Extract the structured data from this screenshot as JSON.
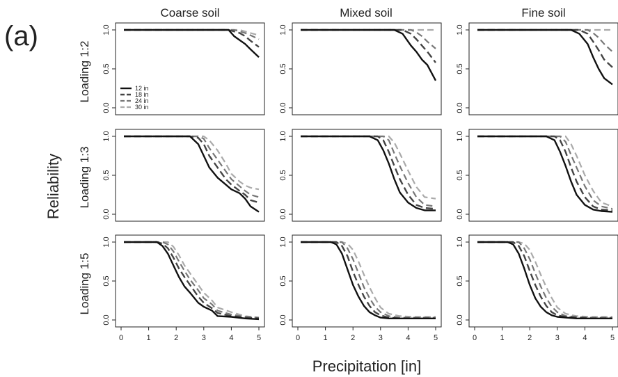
{
  "figure": {
    "panel_tag": "(a)",
    "ylabel": "Reliability",
    "xlabel": "Precipitation [in]",
    "columns": [
      "Coarse soil",
      "Mixed soil",
      "Fine soil"
    ],
    "rows": [
      "Loading 1:2",
      "Loading 1:3",
      "Loading 1:5"
    ],
    "legend": [
      "12 in",
      "18 in",
      "24 in",
      "30 in"
    ],
    "series_colors": [
      "#111111",
      "#444444",
      "#777777",
      "#aaaaaa"
    ],
    "x_ticks": [
      "0",
      "1",
      "2",
      "3",
      "4",
      "5"
    ],
    "y_ticks": [
      "0.0",
      "0.5",
      "1.0"
    ]
  },
  "chart_data": [
    {
      "type": "line",
      "title": "Coarse soil",
      "ylabel": "Loading 1:2",
      "xlim": [
        0,
        5
      ],
      "ylim": [
        0,
        1
      ],
      "x": [
        0.1,
        3.9,
        4.1,
        4.3,
        4.5,
        4.7,
        5.0
      ],
      "series": [
        {
          "name": "12 in",
          "values": [
            1.0,
            1.0,
            0.92,
            0.87,
            0.82,
            0.75,
            0.65
          ]
        },
        {
          "name": "18 in",
          "values": [
            1.0,
            1.0,
            0.98,
            0.96,
            0.92,
            0.86,
            0.78
          ]
        },
        {
          "name": "24 in",
          "values": [
            1.0,
            1.0,
            1.0,
            0.98,
            0.96,
            0.93,
            0.88
          ]
        },
        {
          "name": "30 in",
          "values": [
            1.0,
            1.0,
            1.0,
            1.0,
            0.98,
            0.96,
            0.93
          ]
        }
      ]
    },
    {
      "type": "line",
      "title": "Mixed soil",
      "ylabel": "Loading 1:2",
      "xlim": [
        0,
        5
      ],
      "ylim": [
        0,
        1
      ],
      "x": [
        0.1,
        3.5,
        3.8,
        4.1,
        4.3,
        4.5,
        4.7,
        5.0
      ],
      "series": [
        {
          "name": "12 in",
          "values": [
            1.0,
            1.0,
            0.95,
            0.8,
            0.72,
            0.62,
            0.55,
            0.35
          ]
        },
        {
          "name": "18 in",
          "values": [
            1.0,
            1.0,
            1.0,
            0.95,
            0.88,
            0.8,
            0.72,
            0.58
          ]
        },
        {
          "name": "24 in",
          "values": [
            1.0,
            1.0,
            1.0,
            1.0,
            0.97,
            0.92,
            0.85,
            0.76
          ]
        },
        {
          "name": "30 in",
          "values": [
            1.0,
            1.0,
            1.0,
            1.0,
            1.0,
            1.0,
            1.0,
            1.0
          ]
        }
      ]
    },
    {
      "type": "line",
      "title": "Fine soil",
      "ylabel": "Loading 1:2",
      "xlim": [
        0,
        5
      ],
      "ylim": [
        0,
        1
      ],
      "x": [
        0.1,
        3.5,
        3.8,
        4.1,
        4.3,
        4.5,
        4.7,
        5.0
      ],
      "series": [
        {
          "name": "12 in",
          "values": [
            1.0,
            1.0,
            0.95,
            0.82,
            0.65,
            0.5,
            0.38,
            0.3
          ]
        },
        {
          "name": "18 in",
          "values": [
            1.0,
            1.0,
            1.0,
            0.95,
            0.85,
            0.74,
            0.62,
            0.52
          ]
        },
        {
          "name": "24 in",
          "values": [
            1.0,
            1.0,
            1.0,
            1.0,
            0.96,
            0.9,
            0.82,
            0.72
          ]
        },
        {
          "name": "30 in",
          "values": [
            1.0,
            1.0,
            1.0,
            1.0,
            1.0,
            1.0,
            1.0,
            1.0
          ]
        }
      ]
    },
    {
      "type": "line",
      "title": "Coarse soil",
      "ylabel": "Loading 1:3",
      "xlim": [
        0,
        5
      ],
      "ylim": [
        0,
        1
      ],
      "x": [
        0.1,
        2.5,
        2.8,
        3.0,
        3.2,
        3.5,
        3.8,
        4.0,
        4.3,
        4.5,
        4.7,
        5.0
      ],
      "series": [
        {
          "name": "12 in",
          "values": [
            1.0,
            1.0,
            0.9,
            0.75,
            0.6,
            0.47,
            0.38,
            0.32,
            0.27,
            0.2,
            0.1,
            0.03
          ]
        },
        {
          "name": "18 in",
          "values": [
            1.0,
            1.0,
            0.98,
            0.9,
            0.75,
            0.6,
            0.45,
            0.38,
            0.3,
            0.25,
            0.18,
            0.15
          ]
        },
        {
          "name": "24 in",
          "values": [
            1.0,
            1.0,
            1.0,
            0.97,
            0.85,
            0.7,
            0.55,
            0.45,
            0.36,
            0.3,
            0.25,
            0.22
          ]
        },
        {
          "name": "30 in",
          "values": [
            1.0,
            1.0,
            1.0,
            1.0,
            0.95,
            0.82,
            0.65,
            0.52,
            0.42,
            0.37,
            0.34,
            0.32
          ]
        }
      ]
    },
    {
      "type": "line",
      "title": "Mixed soil",
      "ylabel": "Loading 1:3",
      "xlim": [
        0,
        5
      ],
      "ylim": [
        0,
        1
      ],
      "x": [
        0.1,
        2.6,
        2.9,
        3.1,
        3.3,
        3.5,
        3.7,
        4.0,
        4.3,
        4.6,
        5.0
      ],
      "series": [
        {
          "name": "12 in",
          "values": [
            1.0,
            1.0,
            0.95,
            0.82,
            0.65,
            0.45,
            0.28,
            0.15,
            0.08,
            0.05,
            0.05
          ]
        },
        {
          "name": "18 in",
          "values": [
            1.0,
            1.0,
            1.0,
            0.95,
            0.8,
            0.62,
            0.45,
            0.25,
            0.12,
            0.08,
            0.07
          ]
        },
        {
          "name": "24 in",
          "values": [
            1.0,
            1.0,
            1.0,
            1.0,
            0.95,
            0.78,
            0.62,
            0.4,
            0.22,
            0.12,
            0.1
          ]
        },
        {
          "name": "30 in",
          "values": [
            1.0,
            1.0,
            1.0,
            1.0,
            1.0,
            0.92,
            0.78,
            0.56,
            0.35,
            0.22,
            0.2
          ]
        }
      ]
    },
    {
      "type": "line",
      "title": "Fine soil",
      "ylabel": "Loading 1:3",
      "xlim": [
        0,
        5
      ],
      "ylim": [
        0,
        1
      ],
      "x": [
        0.1,
        2.6,
        2.9,
        3.1,
        3.3,
        3.5,
        3.7,
        4.0,
        4.3,
        4.6,
        5.0
      ],
      "series": [
        {
          "name": "12 in",
          "values": [
            1.0,
            1.0,
            0.95,
            0.8,
            0.62,
            0.42,
            0.25,
            0.12,
            0.06,
            0.04,
            0.03
          ]
        },
        {
          "name": "18 in",
          "values": [
            1.0,
            1.0,
            1.0,
            0.95,
            0.8,
            0.6,
            0.42,
            0.22,
            0.1,
            0.06,
            0.05
          ]
        },
        {
          "name": "24 in",
          "values": [
            1.0,
            1.0,
            1.0,
            1.0,
            0.93,
            0.76,
            0.6,
            0.36,
            0.18,
            0.1,
            0.07
          ]
        },
        {
          "name": "30 in",
          "values": [
            1.0,
            1.0,
            1.0,
            1.0,
            1.0,
            0.9,
            0.75,
            0.5,
            0.3,
            0.15,
            0.1
          ]
        }
      ]
    },
    {
      "type": "line",
      "title": "Coarse soil",
      "ylabel": "Loading 1:5",
      "xlim": [
        0,
        5
      ],
      "ylim": [
        0,
        1
      ],
      "x": [
        0.1,
        1.3,
        1.5,
        1.7,
        1.9,
        2.1,
        2.3,
        2.5,
        2.8,
        3.0,
        3.3,
        3.5,
        4.0,
        4.5,
        5.0
      ],
      "series": [
        {
          "name": "12 in",
          "values": [
            1.0,
            1.0,
            0.95,
            0.85,
            0.7,
            0.55,
            0.43,
            0.35,
            0.22,
            0.17,
            0.12,
            0.05,
            0.04,
            0.02,
            0.01
          ]
        },
        {
          "name": "18 in",
          "values": [
            1.0,
            1.0,
            0.98,
            0.92,
            0.8,
            0.66,
            0.55,
            0.45,
            0.3,
            0.22,
            0.15,
            0.09,
            0.05,
            0.03,
            0.02
          ]
        },
        {
          "name": "24 in",
          "values": [
            1.0,
            1.0,
            1.0,
            0.97,
            0.88,
            0.75,
            0.63,
            0.52,
            0.38,
            0.28,
            0.2,
            0.12,
            0.07,
            0.04,
            0.03
          ]
        },
        {
          "name": "30 in",
          "values": [
            1.0,
            1.0,
            1.0,
            1.0,
            0.94,
            0.83,
            0.7,
            0.6,
            0.45,
            0.35,
            0.25,
            0.16,
            0.1,
            0.05,
            0.03
          ]
        }
      ]
    },
    {
      "type": "line",
      "title": "Mixed soil",
      "ylabel": "Loading 1:5",
      "xlim": [
        0,
        5
      ],
      "ylim": [
        0,
        1
      ],
      "x": [
        0.1,
        1.2,
        1.4,
        1.6,
        1.8,
        2.0,
        2.2,
        2.4,
        2.6,
        2.8,
        3.0,
        3.3,
        3.7,
        4.2,
        5.0
      ],
      "series": [
        {
          "name": "12 in",
          "values": [
            1.0,
            1.0,
            0.97,
            0.85,
            0.65,
            0.45,
            0.3,
            0.18,
            0.1,
            0.06,
            0.03,
            0.02,
            0.02,
            0.02,
            0.02
          ]
        },
        {
          "name": "18 in",
          "values": [
            1.0,
            1.0,
            1.0,
            0.95,
            0.82,
            0.62,
            0.45,
            0.3,
            0.18,
            0.1,
            0.06,
            0.03,
            0.02,
            0.02,
            0.02
          ]
        },
        {
          "name": "24 in",
          "values": [
            1.0,
            1.0,
            1.0,
            1.0,
            0.92,
            0.78,
            0.6,
            0.42,
            0.28,
            0.17,
            0.1,
            0.05,
            0.03,
            0.03,
            0.03
          ]
        },
        {
          "name": "30 in",
          "values": [
            1.0,
            1.0,
            1.0,
            1.0,
            0.98,
            0.9,
            0.75,
            0.58,
            0.42,
            0.28,
            0.16,
            0.08,
            0.05,
            0.04,
            0.04
          ]
        }
      ]
    },
    {
      "type": "line",
      "title": "Fine soil",
      "ylabel": "Loading 1:5",
      "xlim": [
        0,
        5
      ],
      "ylim": [
        0,
        1
      ],
      "x": [
        0.1,
        1.2,
        1.4,
        1.6,
        1.8,
        2.0,
        2.2,
        2.4,
        2.6,
        2.8,
        3.0,
        3.3,
        3.7,
        4.2,
        5.0
      ],
      "series": [
        {
          "name": "12 in",
          "values": [
            1.0,
            1.0,
            0.97,
            0.85,
            0.66,
            0.45,
            0.28,
            0.17,
            0.1,
            0.06,
            0.04,
            0.03,
            0.02,
            0.02,
            0.02
          ]
        },
        {
          "name": "18 in",
          "values": [
            1.0,
            1.0,
            1.0,
            0.95,
            0.82,
            0.63,
            0.45,
            0.3,
            0.18,
            0.1,
            0.06,
            0.04,
            0.03,
            0.02,
            0.02
          ]
        },
        {
          "name": "24 in",
          "values": [
            1.0,
            1.0,
            1.0,
            1.0,
            0.92,
            0.78,
            0.6,
            0.43,
            0.28,
            0.17,
            0.1,
            0.05,
            0.04,
            0.03,
            0.03
          ]
        },
        {
          "name": "30 in",
          "values": [
            1.0,
            1.0,
            1.0,
            1.0,
            0.98,
            0.9,
            0.75,
            0.58,
            0.42,
            0.28,
            0.16,
            0.08,
            0.05,
            0.04,
            0.04
          ]
        }
      ]
    }
  ]
}
